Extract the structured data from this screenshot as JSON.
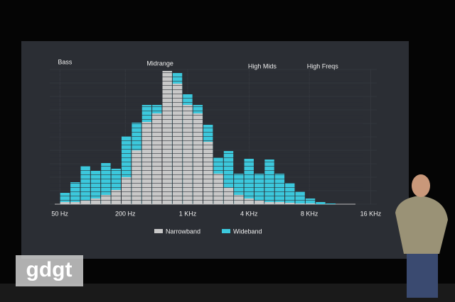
{
  "chart_data": {
    "type": "bar",
    "x": [
      0,
      1,
      2,
      3,
      4,
      5,
      6,
      7,
      8,
      9,
      10,
      11,
      12,
      13,
      14,
      15,
      16,
      17,
      18,
      19,
      20,
      21,
      22,
      23,
      24,
      25,
      26
    ],
    "xlim": [
      -1,
      30.5
    ],
    "xticks": [
      {
        "value": -0.5,
        "label": "50 Hz"
      },
      {
        "value": 5.9,
        "label": "200 Hz"
      },
      {
        "value": 12,
        "label": "1 KHz"
      },
      {
        "value": 18,
        "label": "4 KHz"
      },
      {
        "value": 23.9,
        "label": "8 KHz"
      },
      {
        "value": 29.9,
        "label": "16 KHz"
      }
    ],
    "ylim": [
      0,
      190
    ],
    "series": [
      {
        "name": "Wideband",
        "color": "#3cc8dc",
        "values": [
          16,
          31,
          54,
          47,
          58,
          50,
          96,
          115,
          140,
          140,
          188,
          185,
          155,
          140,
          112,
          66,
          75,
          43,
          64,
          43,
          63,
          43,
          30,
          18,
          8,
          3,
          1
        ]
      },
      {
        "name": "Narrowband",
        "color": "#c8c8c8",
        "values": [
          3,
          3,
          5,
          8,
          13,
          20,
          38,
          76,
          116,
          128,
          188,
          170,
          140,
          128,
          88,
          43,
          23,
          13,
          8,
          5,
          3,
          3,
          2,
          1,
          1,
          0,
          0
        ]
      }
    ],
    "annotations": [
      {
        "text": "Bass",
        "x": 0
      },
      {
        "text": "Midrange",
        "x": 9.3
      },
      {
        "text": "High Mids",
        "x": 19.3
      },
      {
        "text": "High Freqs",
        "x": 25.2
      }
    ],
    "legend": "bottom"
  },
  "watermark": "gdgt"
}
